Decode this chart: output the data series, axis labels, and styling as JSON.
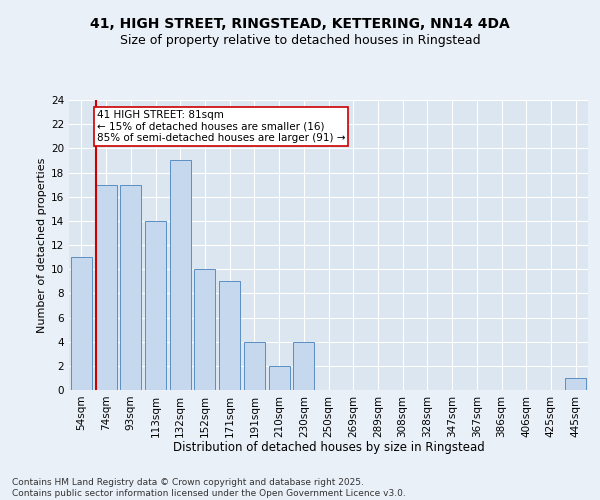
{
  "title1": "41, HIGH STREET, RINGSTEAD, KETTERING, NN14 4DA",
  "title2": "Size of property relative to detached houses in Ringstead",
  "xlabel": "Distribution of detached houses by size in Ringstead",
  "ylabel": "Number of detached properties",
  "categories": [
    "54sqm",
    "74sqm",
    "93sqm",
    "113sqm",
    "132sqm",
    "152sqm",
    "171sqm",
    "191sqm",
    "210sqm",
    "230sqm",
    "250sqm",
    "269sqm",
    "289sqm",
    "308sqm",
    "328sqm",
    "347sqm",
    "367sqm",
    "386sqm",
    "406sqm",
    "425sqm",
    "445sqm"
  ],
  "values": [
    11,
    17,
    17,
    14,
    19,
    10,
    9,
    4,
    2,
    4,
    0,
    0,
    0,
    0,
    0,
    0,
    0,
    0,
    0,
    0,
    1
  ],
  "bar_color": "#c5d8ed",
  "bar_edgecolor": "#5a8fc2",
  "vline_index": 1,
  "vline_color": "#cc0000",
  "annotation_text": "41 HIGH STREET: 81sqm\n← 15% of detached houses are smaller (16)\n85% of semi-detached houses are larger (91) →",
  "ylim": [
    0,
    24
  ],
  "yticks": [
    0,
    2,
    4,
    6,
    8,
    10,
    12,
    14,
    16,
    18,
    20,
    22,
    24
  ],
  "bg_color": "#eaf0f8",
  "plot_bg_color": "#dce6f0",
  "grid_color": "#ffffff",
  "footer": "Contains HM Land Registry data © Crown copyright and database right 2025.\nContains public sector information licensed under the Open Government Licence v3.0.",
  "title1_fontsize": 10,
  "title2_fontsize": 9,
  "xlabel_fontsize": 8.5,
  "ylabel_fontsize": 8,
  "tick_fontsize": 7.5,
  "footer_fontsize": 6.5,
  "ann_fontsize": 7.5
}
